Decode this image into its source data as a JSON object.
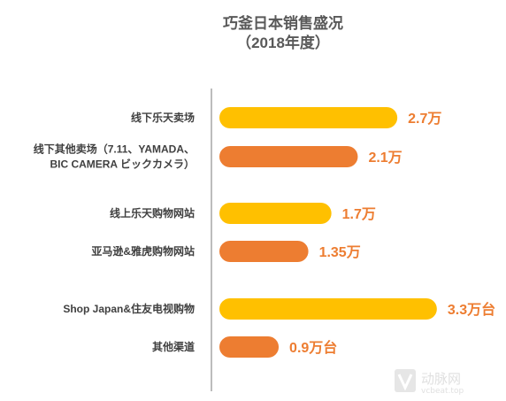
{
  "chart_data": {
    "type": "bar",
    "orientation": "horizontal",
    "title": "巧釜日本销售盛况",
    "subtitle": "（2018年度）",
    "categories": [
      [
        "线下乐天卖场"
      ],
      [
        "线下其他卖场（7.11、YAMADA、",
        "BIC CAMERA ビックカメラ）"
      ],
      [
        "线上乐天购物网站"
      ],
      [
        "亚马逊&雅虎购物网站"
      ],
      [
        "Shop Japan&住友电视购物"
      ],
      [
        "其他渠道"
      ]
    ],
    "values": [
      2.7,
      2.1,
      1.7,
      1.35,
      3.3,
      0.9
    ],
    "value_labels": [
      "2.7万",
      "2.1万",
      "1.7万",
      "1.35万",
      "3.3万台",
      "0.9万台"
    ],
    "bar_colors": [
      "#FFC000",
      "#ED7D31",
      "#FFC000",
      "#ED7D31",
      "#FFC000",
      "#ED7D31"
    ],
    "label_colors": [
      "#ED7D31",
      "#ED7D31",
      "#ED7D31",
      "#ED7D31",
      "#ED7D31",
      "#ED7D31"
    ],
    "xlim": [
      0,
      3.3
    ],
    "grid": false,
    "legend": "none"
  },
  "watermark": {
    "logo_text": "动脉网",
    "url_text": "vcbeat.top"
  }
}
